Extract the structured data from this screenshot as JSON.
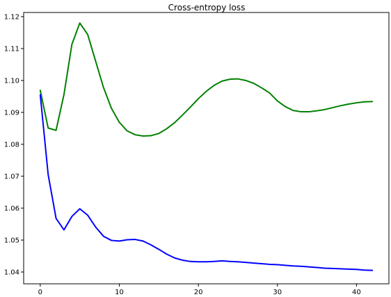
{
  "chart_data": {
    "type": "line",
    "title": "Cross-entropy loss",
    "xlabel": "",
    "ylabel": "",
    "xlim": [
      -2.1,
      44.1
    ],
    "ylim": [
      1.0363,
      1.1213
    ],
    "xticks": [
      0,
      10,
      20,
      30,
      40
    ],
    "yticks": [
      1.04,
      1.05,
      1.06,
      1.07,
      1.08,
      1.09,
      1.1,
      1.11,
      1.12
    ],
    "ytick_labels": [
      "1.04",
      "1.05",
      "1.06",
      "1.07",
      "1.08",
      "1.09",
      "1.10",
      "1.11",
      "1.12"
    ],
    "grid": false,
    "legend": null,
    "series": [
      {
        "color": "#008000",
        "x": [
          0,
          1,
          2,
          3,
          4,
          5,
          6,
          7,
          8,
          9,
          10,
          11,
          12,
          13,
          14,
          15,
          16,
          17,
          18,
          19,
          20,
          21,
          22,
          23,
          24,
          25,
          26,
          27,
          28,
          29,
          30,
          31,
          32,
          33,
          34,
          35,
          36,
          37,
          38,
          39,
          40,
          41,
          42
        ],
        "y": [
          1.0969,
          1.0851,
          1.0844,
          1.0956,
          1.1113,
          1.118,
          1.1144,
          1.1061,
          1.0978,
          1.0913,
          1.0869,
          1.0842,
          1.083,
          1.0826,
          1.0827,
          1.0834,
          1.0849,
          1.0868,
          1.0892,
          1.0917,
          1.0943,
          1.0966,
          1.0985,
          1.0998,
          1.1004,
          1.1005,
          1.1,
          1.0991,
          1.0977,
          1.0961,
          1.0936,
          1.0918,
          1.0906,
          1.0902,
          1.0902,
          1.0905,
          1.0909,
          1.0915,
          1.0921,
          1.0926,
          1.093,
          1.0933,
          1.0934
        ]
      },
      {
        "color": "#0000ff",
        "x": [
          0,
          1,
          2,
          3,
          4,
          5,
          6,
          7,
          8,
          9,
          10,
          11,
          12,
          13,
          14,
          15,
          16,
          17,
          18,
          19,
          20,
          21,
          22,
          23,
          24,
          25,
          26,
          27,
          28,
          29,
          30,
          31,
          32,
          33,
          34,
          35,
          36,
          37,
          38,
          39,
          40,
          41,
          42
        ],
        "y": [
          1.0955,
          1.0705,
          1.0568,
          1.0532,
          1.0574,
          1.0598,
          1.0578,
          1.0541,
          1.0512,
          1.0499,
          1.0497,
          1.0501,
          1.0502,
          1.0497,
          1.0485,
          1.0471,
          1.0456,
          1.0444,
          1.0437,
          1.0433,
          1.0432,
          1.0432,
          1.0433,
          1.0435,
          1.0433,
          1.0432,
          1.043,
          1.0428,
          1.0426,
          1.0424,
          1.0423,
          1.0421,
          1.0419,
          1.0418,
          1.0416,
          1.0414,
          1.0412,
          1.0411,
          1.041,
          1.0409,
          1.0408,
          1.0406,
          1.0405
        ]
      }
    ]
  }
}
